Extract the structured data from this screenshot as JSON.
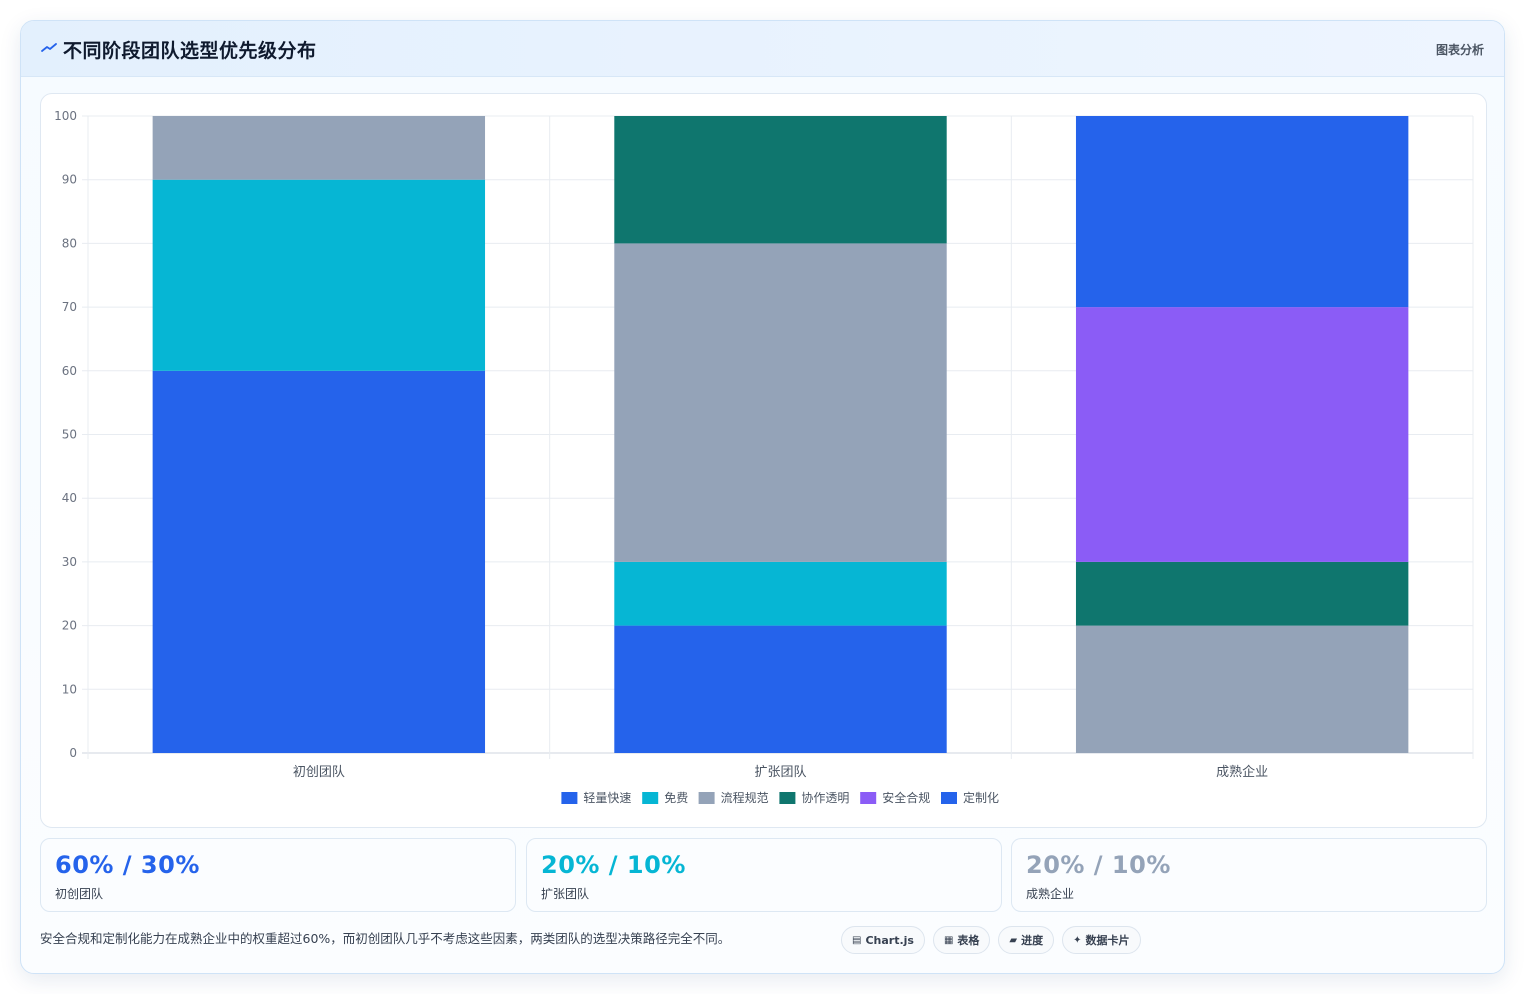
{
  "header": {
    "title": "不同阶段团队选型优先级分布",
    "tag": "图表分析"
  },
  "chart_data": {
    "type": "bar",
    "stacked": true,
    "categories": [
      "初创团队",
      "扩张团队",
      "成熟企业"
    ],
    "ylim": [
      0,
      100
    ],
    "yticks": [
      0,
      10,
      20,
      30,
      40,
      50,
      60,
      70,
      80,
      90,
      100
    ],
    "grid": true,
    "legend_position": "bottom",
    "series": [
      {
        "name": "轻量快速",
        "color": "#2563eb",
        "values": [
          60,
          20,
          0
        ]
      },
      {
        "name": "免费",
        "color": "#06b6d4",
        "values": [
          30,
          10,
          0
        ]
      },
      {
        "name": "流程规范",
        "color": "#94a3b8",
        "values": [
          10,
          50,
          20
        ]
      },
      {
        "name": "协作透明",
        "color": "#0f766e",
        "values": [
          0,
          20,
          10
        ]
      },
      {
        "name": "安全合规",
        "color": "#8b5cf6",
        "values": [
          0,
          0,
          40
        ]
      },
      {
        "name": "定制化",
        "color": "#2563eb",
        "values": [
          0,
          0,
          30
        ]
      }
    ]
  },
  "kpis": [
    {
      "value": "60% / 30%",
      "label": "初创团队",
      "color": "#2563eb"
    },
    {
      "value": "20% / 10%",
      "label": "扩张团队",
      "color": "#06b6d4"
    },
    {
      "value": "20% / 10%",
      "label": "成熟企业",
      "color": "#94a3b8"
    }
  ],
  "note": "安全合规和定制化能力在成熟企业中的权重超过60%，而初创团队几乎不考虑这些因素，两类团队的选型决策路径完全不同。",
  "pills": [
    {
      "icon": "chart-icon",
      "glyph": "▤",
      "label": "Chart.js"
    },
    {
      "icon": "table-icon",
      "glyph": "▦",
      "label": "表格"
    },
    {
      "icon": "progress-icon",
      "glyph": "▰",
      "label": "进度"
    },
    {
      "icon": "card-icon",
      "glyph": "✦",
      "label": "数据卡片"
    }
  ]
}
